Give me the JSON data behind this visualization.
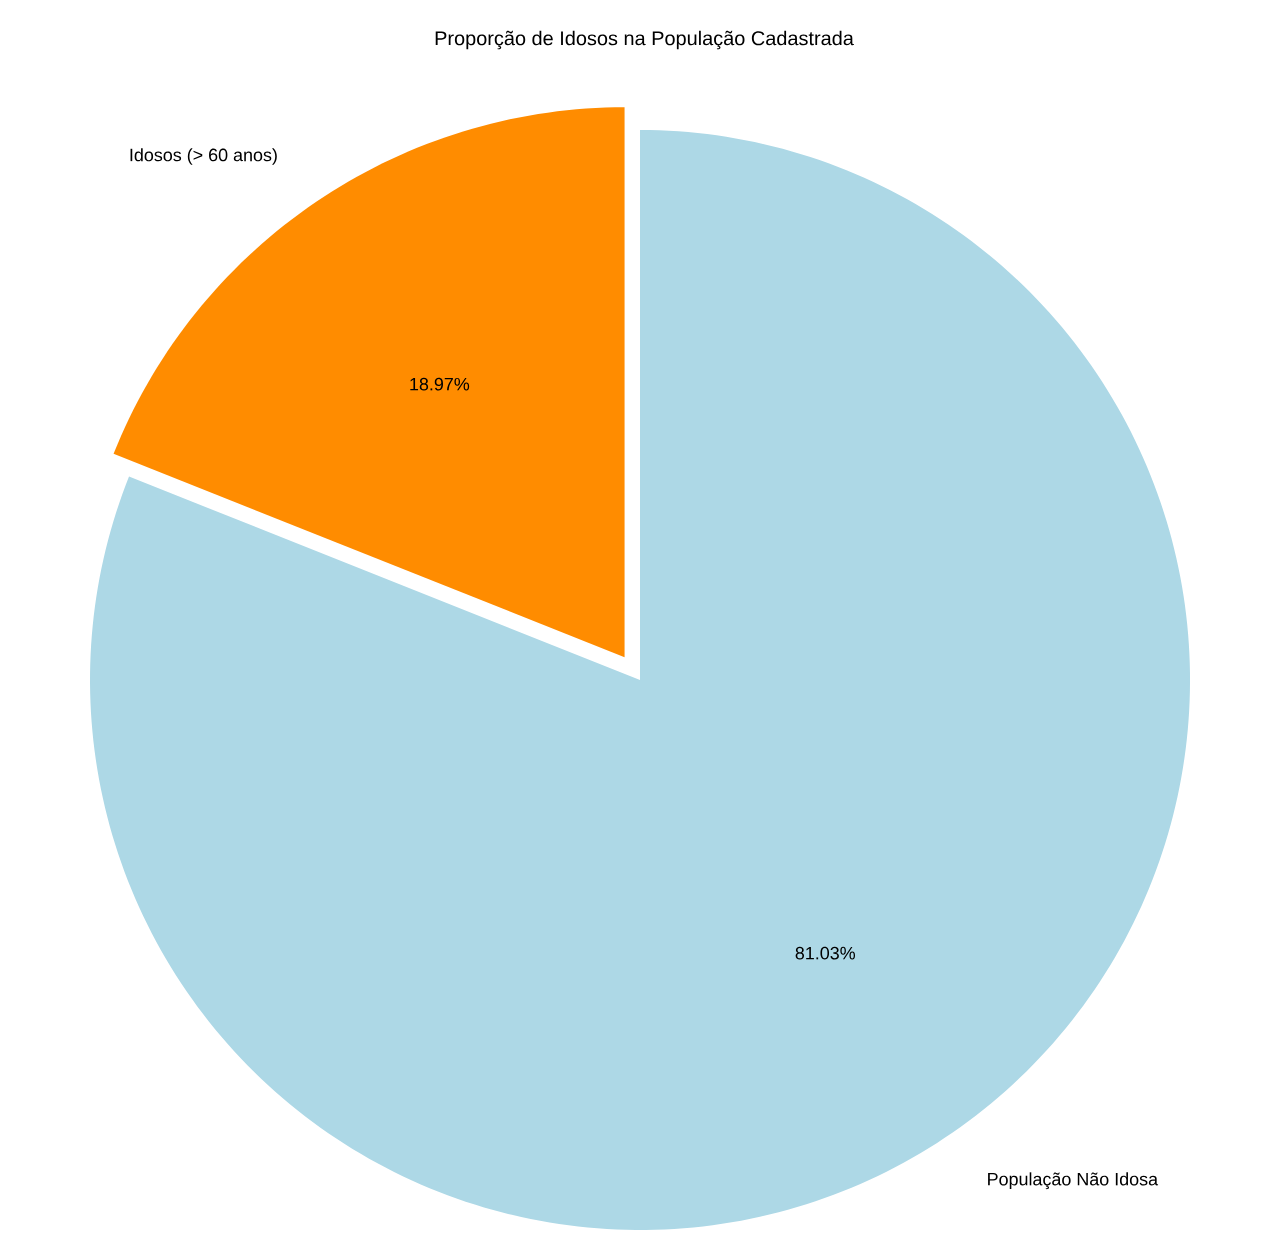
{
  "chart_data": {
    "type": "pie",
    "title": "Proporção de Idosos na População Cadastrada",
    "categories": [
      "Idosos (> 60 anos)",
      "População Não Idosa"
    ],
    "values": [
      18.97,
      81.03
    ],
    "colors": [
      "#ff8c00",
      "#add8e6"
    ],
    "value_labels": [
      "18.97%",
      "81.03%"
    ]
  }
}
